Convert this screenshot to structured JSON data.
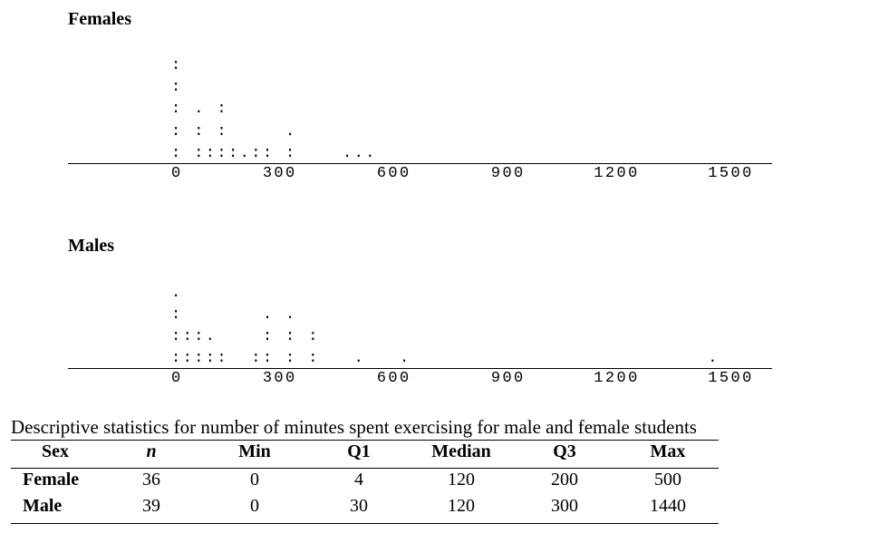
{
  "females": {
    "title": "Females",
    "rows": [
      ":",
      ":",
      ": . :",
      ": : :     .",
      ": ::::.:: :    ..."
    ],
    "axis": "0       300       600       900      1200      1500"
  },
  "males": {
    "title": "Males",
    "rows": [
      ".",
      ":       . .",
      ":::.    : : :",
      ":::::  :: : :   .   .                          ."
    ],
    "axis": "0       300       600       900      1200      1500"
  },
  "table": {
    "caption": "Descriptive statistics for number of minutes spent exercising for male and female students",
    "header": [
      "Sex",
      "n",
      "Min",
      "Q1",
      "Median",
      "Q3",
      "Max"
    ],
    "rows": [
      [
        "Female",
        "36",
        "0",
        "4",
        "120",
        "200",
        "500"
      ],
      [
        "Male",
        "39",
        "0",
        "30",
        "120",
        "300",
        "1440"
      ]
    ]
  }
}
